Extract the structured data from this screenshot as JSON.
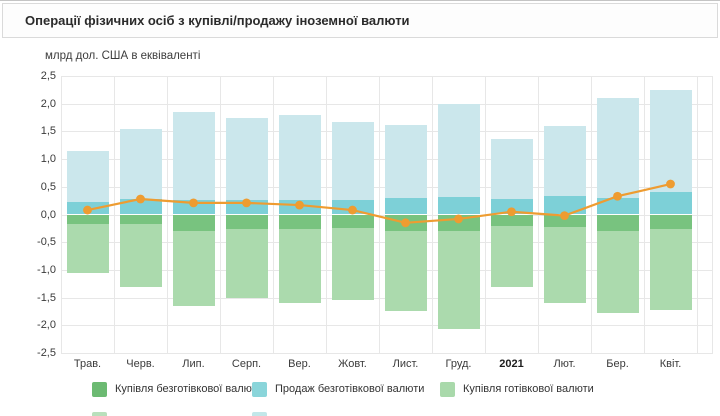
{
  "header": {
    "title": "Операції фізичних осіб з купівлі/продажу іноземної валюти"
  },
  "chart": {
    "units_label": "млрд дол. США в еквіваленті"
  },
  "chart_data": {
    "type": "bar",
    "title": "Операції фізичних осіб з купівлі/продажу іноземної валюти",
    "ylabel": "млрд дол. США в еквіваленті",
    "ylim": [
      -2.5,
      2.5
    ],
    "ytick_step": 0.5,
    "grid": true,
    "legend_position": "bottom",
    "categories": [
      "Трав.",
      "Черв.",
      "Лип.",
      "Серп.",
      "Вер.",
      "Жовт.",
      "Лист.",
      "Груд.",
      "2021",
      "Лют.",
      "Бер.",
      "Квіт."
    ],
    "emphasized_category": "2021",
    "y_tick_labels": [
      "2,5",
      "2,0",
      "1,5",
      "1,0",
      "0,5",
      "0,0",
      "-0,5",
      "-1,0",
      "-1,5",
      "-2,0",
      "-2,5"
    ],
    "series": [
      {
        "name": "Продаж безготівкової валюти",
        "type": "bar",
        "color": "#cbe7ec",
        "legend_visible": true,
        "values": [
          1.15,
          1.55,
          1.85,
          1.75,
          1.8,
          1.67,
          1.62,
          2.0,
          1.37,
          1.6,
          2.1,
          2.25
        ]
      },
      {
        "name": "",
        "type": "bar",
        "color": "#7dd0d7",
        "legend_visible": false,
        "values": [
          0.22,
          0.28,
          0.26,
          0.26,
          0.27,
          0.27,
          0.3,
          0.32,
          0.28,
          0.33,
          0.3,
          0.4
        ]
      },
      {
        "name": "Купівля готівкової валюти",
        "type": "bar",
        "color": "#abdaad",
        "legend_visible": true,
        "values": [
          -1.05,
          -1.3,
          -1.65,
          -1.5,
          -1.6,
          -1.55,
          -1.75,
          -2.07,
          -1.3,
          -1.6,
          -1.78,
          -1.72
        ]
      },
      {
        "name": "Купівля безготівкової валюти",
        "type": "bar",
        "color": "#78c37f",
        "legend_visible": true,
        "values": [
          -0.17,
          -0.17,
          -0.3,
          -0.27,
          -0.27,
          -0.25,
          -0.3,
          -0.3,
          -0.2,
          -0.23,
          -0.3,
          -0.27
        ]
      },
      {
        "name": "",
        "type": "line",
        "color": "#ee9c31",
        "legend_visible": false,
        "values": [
          0.08,
          0.28,
          0.21,
          0.21,
          0.17,
          0.08,
          -0.15,
          -0.08,
          0.05,
          -0.02,
          0.33,
          0.55
        ]
      }
    ]
  },
  "legend": {
    "items": [
      {
        "label": "Купівля безготівкової валюти",
        "color": "#6cba72"
      },
      {
        "label": "Продаж безготівкової валюти",
        "color": "#8ad5da"
      },
      {
        "label": "Купівля готівкової валюти",
        "color": "#a9d9ab"
      }
    ],
    "partial_second_row_swatches": [
      {
        "color": "#b9e0bc"
      },
      {
        "color": "#c2e7e9"
      }
    ]
  },
  "colors": {
    "grid": "#e7e7e7",
    "accent_line": "#ee9c31",
    "text": "#333333"
  }
}
